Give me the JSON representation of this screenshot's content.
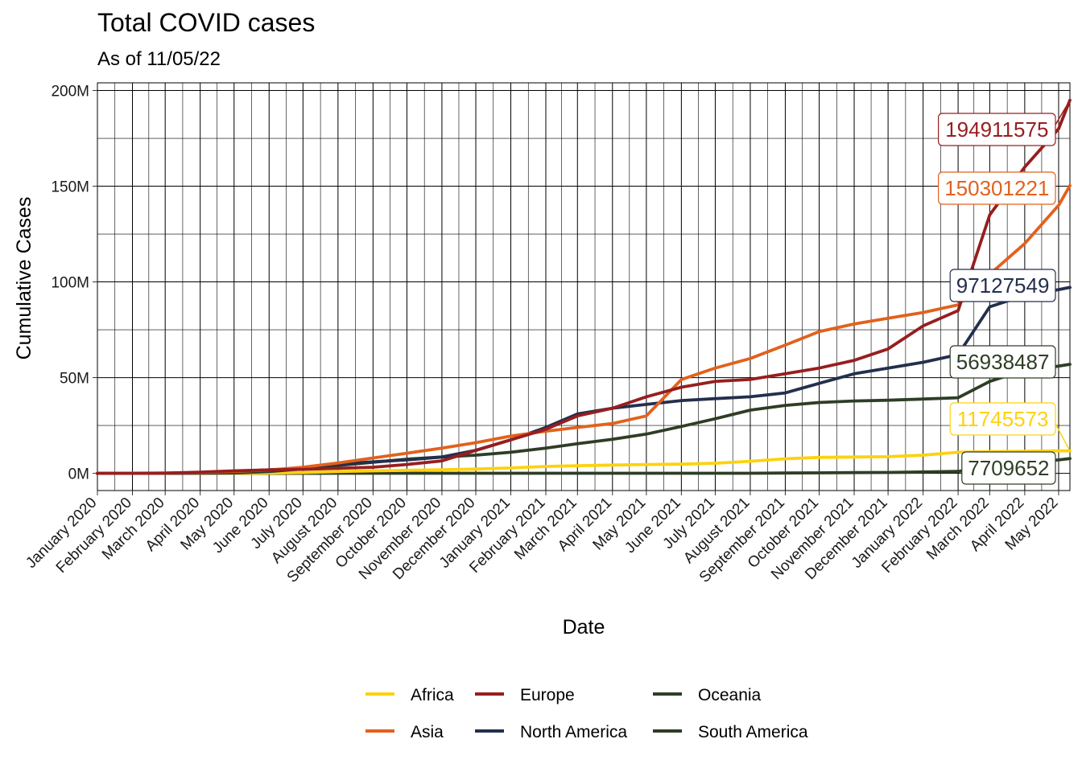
{
  "chart_data": {
    "type": "line",
    "title": "Total COVID cases",
    "subtitle": "As of 11/05/22",
    "xlabel": "Date",
    "ylabel": "Cumulative Cases",
    "ylim": [
      -9000000,
      204000000
    ],
    "yticks": [
      0,
      50000000,
      100000000,
      150000000,
      200000000
    ],
    "ytick_labels": [
      "0M",
      "50M",
      "100M",
      "150M",
      "200M"
    ],
    "x": [
      "2020-01-01",
      "2020-02-01",
      "2020-03-01",
      "2020-04-01",
      "2020-05-01",
      "2020-06-01",
      "2020-07-01",
      "2020-08-01",
      "2020-09-01",
      "2020-10-01",
      "2020-11-01",
      "2020-12-01",
      "2021-01-01",
      "2021-02-01",
      "2021-03-01",
      "2021-04-01",
      "2021-05-01",
      "2021-06-01",
      "2021-07-01",
      "2021-08-01",
      "2021-09-01",
      "2021-10-01",
      "2021-11-01",
      "2021-12-01",
      "2022-01-01",
      "2022-02-01",
      "2022-03-01",
      "2022-04-01",
      "2022-05-01",
      "2022-05-11"
    ],
    "xtick_labels": [
      "January 2020",
      "February 2020",
      "March 2020",
      "April 2020",
      "May 2020",
      "June 2020",
      "July 2020",
      "August 2020",
      "September 2020",
      "October 2020",
      "November 2020",
      "December 2020",
      "January 2021",
      "February 2021",
      "March 2021",
      "April 2021",
      "May 2021",
      "June 2021",
      "July 2021",
      "August 2021",
      "September 2021",
      "October 2021",
      "November 2021",
      "December 2021",
      "January 2022",
      "February 2022",
      "March 2022",
      "April 2022",
      "May 2022"
    ],
    "grid": true,
    "legend_position": "bottom",
    "series": [
      {
        "name": "Africa",
        "color": "#FDD20E",
        "values": [
          0,
          0,
          0,
          10000,
          50000,
          150000,
          400000,
          900000,
          1300000,
          1600000,
          1900000,
          2200000,
          2800000,
          3600000,
          4000000,
          4300000,
          4600000,
          4800000,
          5300000,
          6300000,
          7600000,
          8300000,
          8500000,
          8700000,
          9500000,
          11000000,
          11300000,
          11500000,
          11700000,
          11745573
        ],
        "end_label": "11745573"
      },
      {
        "name": "Asia",
        "color": "#E2611C",
        "values": [
          0,
          80000,
          120000,
          400000,
          900000,
          1700000,
          3200000,
          5400000,
          8000000,
          10500000,
          13200000,
          16000000,
          19500000,
          22000000,
          24000000,
          26000000,
          30000000,
          49000000,
          55000000,
          60000000,
          67000000,
          74000000,
          78000000,
          81000000,
          84000000,
          88000000,
          104000000,
          120000000,
          140000000,
          150301221
        ],
        "end_label": "150301221"
      },
      {
        "name": "Europe",
        "color": "#971E1F",
        "values": [
          0,
          500,
          100000,
          600000,
          1300000,
          1800000,
          2100000,
          2600000,
          3200000,
          4600000,
          6500000,
          12000000,
          17500000,
          23000000,
          30000000,
          34000000,
          40000000,
          45000000,
          48000000,
          49000000,
          52000000,
          55000000,
          59000000,
          65000000,
          77000000,
          85000000,
          135000000,
          160000000,
          180000000,
          194911575
        ],
        "end_label": "194911575"
      },
      {
        "name": "North America",
        "color": "#232F4D",
        "values": [
          0,
          20,
          200,
          200000,
          1000000,
          1800000,
          2700000,
          4800000,
          6000000,
          7000000,
          8500000,
          12000000,
          17500000,
          24000000,
          31000000,
          34000000,
          36000000,
          38000000,
          39000000,
          40000000,
          42000000,
          47000000,
          52000000,
          55000000,
          58000000,
          62000000,
          87000000,
          93000000,
          96000000,
          97127549
        ],
        "end_label": "97127549"
      },
      {
        "name": "Oceania",
        "color": "#2E3E26",
        "values": [
          0,
          20,
          80,
          6000,
          7500,
          8000,
          9000,
          20000,
          25000,
          28000,
          29000,
          30000,
          32000,
          33000,
          34000,
          35000,
          36000,
          37000,
          38000,
          50000,
          150000,
          250000,
          350000,
          450000,
          700000,
          1000000,
          3500000,
          5500000,
          7000000,
          7709652
        ],
        "end_label": "7709652"
      },
      {
        "name": "South America",
        "color": "#2E3E26",
        "values": [
          0,
          0,
          600,
          30000,
          200000,
          900000,
          2300000,
          4100000,
          5800000,
          7400000,
          8500000,
          9500000,
          11000000,
          13200000,
          15500000,
          17800000,
          20500000,
          24500000,
          28500000,
          33000000,
          35500000,
          37000000,
          37800000,
          38200000,
          38800000,
          39500000,
          48000000,
          54000000,
          56000000,
          56938487
        ],
        "end_label": "56938487"
      }
    ],
    "legend_rows": [
      [
        "Africa",
        "Europe",
        "Oceania"
      ],
      [
        "Asia",
        "North America",
        "South America"
      ]
    ]
  }
}
